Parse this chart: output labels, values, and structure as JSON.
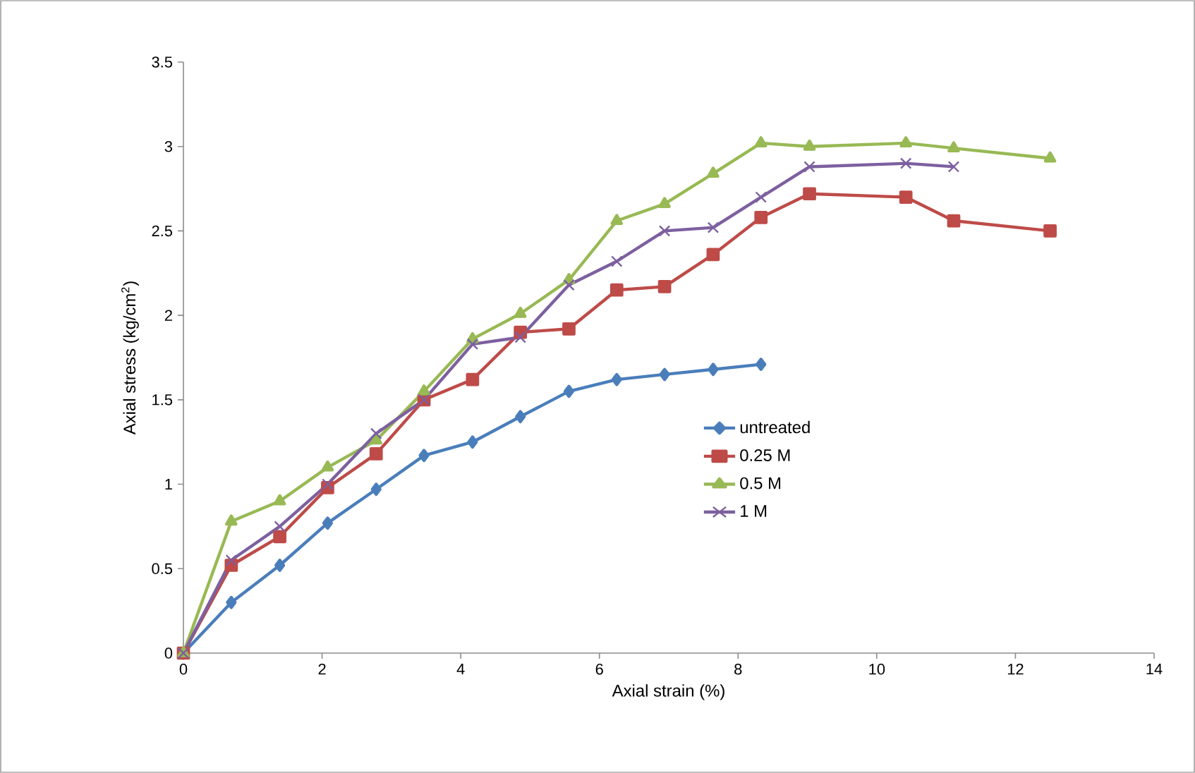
{
  "chart_data": {
    "type": "line",
    "xlabel": "Axial strain (%)",
    "ylabel": "Axial stress (kg/cm$^{2}$)",
    "xlim": [
      0,
      14
    ],
    "xticks": [
      0,
      2,
      4,
      6,
      8,
      10,
      12,
      14
    ],
    "ylim": [
      0,
      3.5
    ],
    "yticks": [
      0,
      0.5,
      1,
      1.5,
      2,
      2.5,
      3,
      3.5
    ],
    "grid": false,
    "legend": "right",
    "line_style": "solid",
    "series": [
      {
        "name": "untreated",
        "color": "#4a7ebb",
        "marker": "diamond",
        "x": [
          0,
          0.69,
          1.39,
          2.08,
          2.78,
          3.47,
          4.17,
          4.86,
          5.56,
          6.25,
          6.94,
          7.64,
          8.33
        ],
        "values": [
          0,
          0.3,
          0.52,
          0.77,
          0.97,
          1.17,
          1.25,
          1.4,
          1.55,
          1.62,
          1.65,
          1.68,
          1.71
        ]
      },
      {
        "name": "0.25 M",
        "color": "#be4b48",
        "marker": "square",
        "x": [
          0,
          0.69,
          1.39,
          2.08,
          2.78,
          3.47,
          4.17,
          4.86,
          5.56,
          6.25,
          6.94,
          7.64,
          8.33,
          9.03,
          10.42,
          11.11,
          12.5
        ],
        "values": [
          0,
          0.52,
          0.69,
          0.98,
          1.18,
          1.5,
          1.62,
          1.9,
          1.92,
          2.15,
          2.17,
          2.36,
          2.58,
          2.72,
          2.7,
          2.56,
          2.5
        ]
      },
      {
        "name": "0.5 M",
        "color": "#98b954",
        "marker": "triangle",
        "x": [
          0,
          0.69,
          1.39,
          2.08,
          2.78,
          3.47,
          4.17,
          4.86,
          5.56,
          6.25,
          6.94,
          7.64,
          8.33,
          9.03,
          10.42,
          11.11,
          12.5
        ],
        "values": [
          0,
          0.78,
          0.9,
          1.1,
          1.26,
          1.55,
          1.86,
          2.01,
          2.21,
          2.56,
          2.66,
          2.84,
          3.02,
          3.0,
          3.02,
          2.99,
          2.93
        ]
      },
      {
        "name": "1 M",
        "color": "#7d60a0",
        "marker": "cross",
        "x": [
          0,
          0.69,
          1.39,
          2.08,
          2.78,
          3.47,
          4.17,
          4.86,
          5.56,
          6.25,
          6.94,
          7.64,
          8.33,
          9.03,
          10.42,
          11.11
        ],
        "values": [
          0,
          0.55,
          0.75,
          1.0,
          1.3,
          1.5,
          1.83,
          1.87,
          2.18,
          2.32,
          2.5,
          2.52,
          2.7,
          2.88,
          2.9,
          2.88
        ]
      }
    ]
  }
}
